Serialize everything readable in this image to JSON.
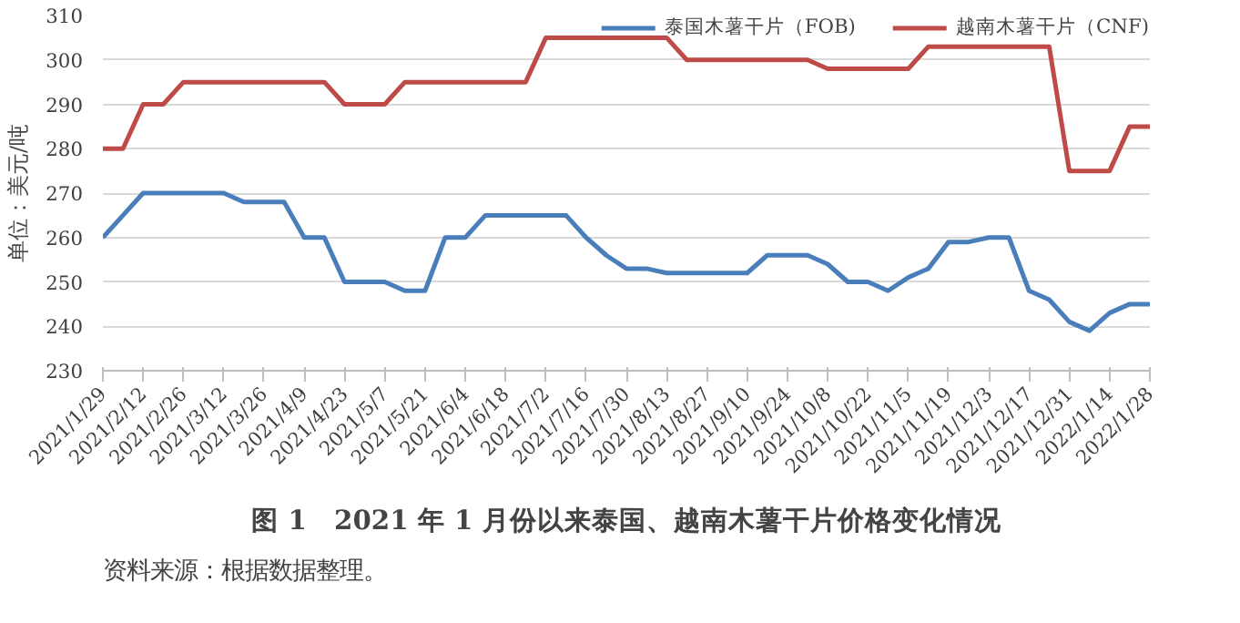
{
  "chart_data": {
    "type": "line",
    "title": "图 1　2021 年 1 月份以来泰国、越南木薯干片价格变化情况",
    "ylabel": "单位：美元/吨",
    "categories": [
      "2021/1/29",
      null,
      "2021/2/12",
      null,
      "2021/2/26",
      null,
      "2021/3/12",
      null,
      "2021/3/26",
      null,
      "2021/4/9",
      null,
      "2021/4/23",
      null,
      "2021/5/7",
      null,
      "2021/5/21",
      null,
      "2021/6/4",
      null,
      "2021/6/18",
      null,
      "2021/7/2",
      null,
      "2021/7/16",
      null,
      "2021/7/30",
      null,
      "2021/8/13",
      null,
      "2021/8/27",
      null,
      "2021/9/10",
      null,
      "2021/9/24",
      null,
      "2021/10/8",
      null,
      "2021/10/22",
      null,
      "2021/11/5",
      null,
      "2021/11/19",
      null,
      "2021/12/3",
      null,
      "2021/12/17",
      null,
      "2021/12/31",
      null,
      "2022/1/14",
      null,
      "2022/1/28"
    ],
    "series": [
      {
        "name": "泰国木薯干片（FOB)",
        "color": "#4a7ebb",
        "values": [
          260,
          265,
          270,
          270,
          270,
          270,
          270,
          268,
          268,
          268,
          260,
          260,
          250,
          250,
          250,
          248,
          248,
          260,
          260,
          265,
          265,
          265,
          265,
          265,
          260,
          256,
          253,
          253,
          252,
          252,
          252,
          252,
          252,
          256,
          256,
          256,
          254,
          250,
          250,
          248,
          251,
          253,
          259,
          259,
          260,
          260,
          248,
          246,
          241,
          239,
          243,
          245,
          245
        ]
      },
      {
        "name": "越南木薯干片（CNF)",
        "color": "#be4b48",
        "values": [
          280,
          280,
          290,
          290,
          295,
          295,
          295,
          295,
          295,
          295,
          295,
          295,
          290,
          290,
          290,
          295,
          295,
          295,
          295,
          295,
          295,
          295,
          305,
          305,
          305,
          305,
          305,
          305,
          305,
          300,
          300,
          300,
          300,
          300,
          300,
          300,
          298,
          298,
          298,
          298,
          298,
          303,
          303,
          303,
          303,
          303,
          303,
          303,
          275,
          275,
          275,
          285,
          285
        ]
      }
    ],
    "ylim": [
      230,
      310
    ],
    "yticks": [
      230,
      240,
      250,
      260,
      270,
      280,
      290,
      300,
      310
    ],
    "grid": "y",
    "legend": "top right",
    "marker": "none",
    "line_style": "solid",
    "annotations": [
      "资料来源：根据数据整理。"
    ]
  }
}
